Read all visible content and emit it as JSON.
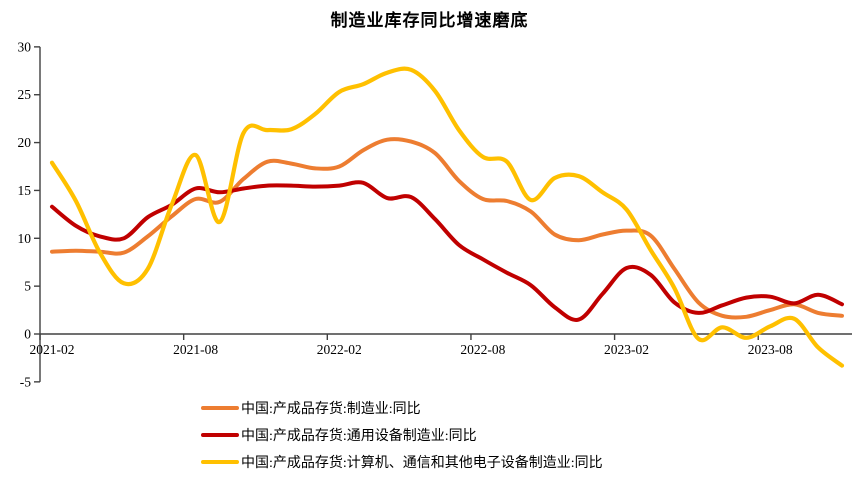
{
  "title": "制造业库存同比增速磨底",
  "chart_data": {
    "type": "line",
    "x": [
      "2021-02",
      "2021-03",
      "2021-04",
      "2021-05",
      "2021-06",
      "2021-07",
      "2021-08",
      "2021-09",
      "2021-10",
      "2021-11",
      "2021-12",
      "2022-01",
      "2022-02",
      "2022-03",
      "2022-04",
      "2022-05",
      "2022-06",
      "2022-07",
      "2022-08",
      "2022-09",
      "2022-10",
      "2022-11",
      "2022-12",
      "2023-01",
      "2023-02",
      "2023-03",
      "2023-04",
      "2023-05",
      "2023-06",
      "2023-07",
      "2023-08",
      "2023-09",
      "2023-10",
      "2023-11"
    ],
    "x_tick_labels": [
      "2021-02",
      "2021-08",
      "2022-02",
      "2022-08",
      "2023-02",
      "2023-08"
    ],
    "x_tick_interval": 6,
    "y_ticks": [
      30,
      25,
      20,
      15,
      10,
      5,
      0,
      -5
    ],
    "ylim": [
      -5,
      30
    ],
    "grid": false,
    "legend_position": "bottom-left",
    "axis_color": "#404040",
    "text_color": "#000000",
    "series": [
      {
        "name": "中国:产成品存货:制造业:同比",
        "color": "#ED7D31",
        "width": 4,
        "values": [
          8.6,
          8.7,
          8.6,
          8.5,
          10.2,
          12.3,
          14.1,
          13.8,
          16.2,
          18.0,
          17.8,
          17.3,
          17.5,
          19.2,
          20.3,
          20.1,
          18.9,
          16.0,
          14.1,
          13.9,
          12.8,
          10.4,
          9.8,
          10.4,
          10.8,
          10.3,
          6.8,
          3.3,
          1.9,
          1.8,
          2.5,
          3.1,
          2.2,
          1.9
        ]
      },
      {
        "name": "中国:产成品存货:通用设备制造业:同比",
        "color": "#C00000",
        "width": 4,
        "values": [
          13.3,
          11.3,
          10.2,
          10.0,
          12.2,
          13.5,
          15.2,
          14.8,
          15.2,
          15.5,
          15.5,
          15.4,
          15.5,
          15.8,
          14.2,
          14.3,
          12.0,
          9.3,
          7.8,
          6.4,
          5.1,
          2.8,
          1.5,
          4.2,
          6.9,
          6.2,
          3.3,
          2.2,
          3.0,
          3.8,
          3.9,
          3.2,
          4.1,
          3.1
        ]
      },
      {
        "name": "中国:产成品存货:计算机、通信和其他电子设备制造业:同比",
        "color": "#FFC000",
        "width": 4.2,
        "values": [
          17.9,
          13.9,
          8.5,
          5.3,
          6.8,
          13.5,
          18.7,
          11.7,
          21.0,
          21.3,
          21.4,
          23.0,
          25.3,
          26.1,
          27.3,
          27.6,
          25.4,
          21.3,
          18.5,
          18.0,
          14.0,
          16.3,
          16.5,
          14.8,
          13.0,
          8.8,
          4.8,
          -0.5,
          0.7,
          -0.4,
          0.8,
          1.6,
          -1.4,
          -3.3
        ]
      }
    ]
  }
}
